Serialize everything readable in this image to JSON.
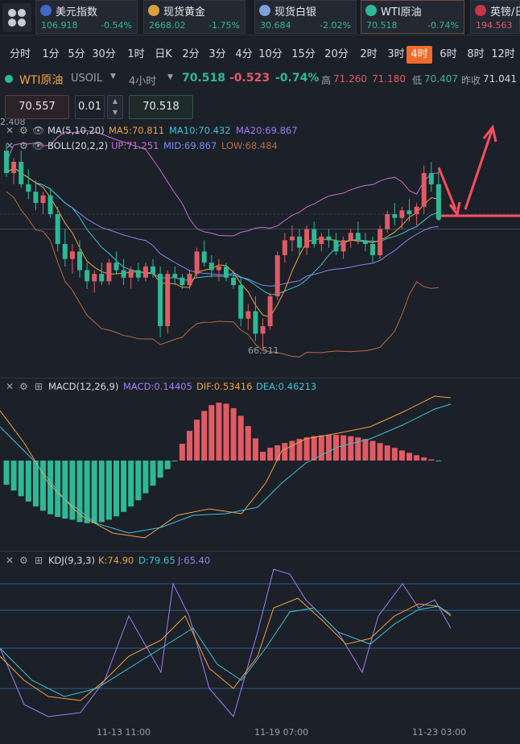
{
  "tickers": [
    {
      "name": "美元指数",
      "price": "106.918",
      "change": "-0.54%",
      "flag_color": "#3f69c7",
      "neg": false
    },
    {
      "name": "现货黄金",
      "price": "2668.02",
      "change": "-1.75%",
      "flag_color": "#d6a23b",
      "neg": false
    },
    {
      "name": "现货白银",
      "price": "30.684",
      "change": "-2.02%",
      "flag_color": "#7da0d8",
      "neg": false
    },
    {
      "name": "WTI原油",
      "price": "70.518",
      "change": "-0.74%",
      "flag_color": "#2eb896",
      "neg": false
    },
    {
      "name": "英镑/日",
      "price": "194.563",
      "change": "",
      "flag_color": "#c8344a",
      "neg": true
    }
  ],
  "timeframes": [
    "分时",
    "1分",
    "5分",
    "30分",
    "1时",
    "日K",
    "2分",
    "3分",
    "4分",
    "10分",
    "15分",
    "20分",
    "2时",
    "3时",
    "4时",
    "6时",
    "8时",
    "12时"
  ],
  "active_timeframe": "4时",
  "symbol": {
    "name": "WTI原油",
    "code": "USOIL",
    "period": "4小时",
    "last": "70.518",
    "change": "-0.523",
    "change_pct": "-0.74%",
    "high_label": "高",
    "high": "71.260",
    "current_price": "71.180",
    "low_label": "低",
    "low": "70.407",
    "prev_close_label": "昨收",
    "prev_close": "71.041"
  },
  "order": {
    "sell_price": "70.557",
    "quantity": "0.01",
    "buy_price": "70.518"
  },
  "indicators": {
    "ma": {
      "label": "MA(5,10,20)",
      "ma5": "MA5:70.811",
      "ma10": "MA10:70.432",
      "ma20": "MA20:69.867"
    },
    "boll": {
      "label": "BOLL(20,2,2)",
      "up": "UP:71.251",
      "mid": "MID:69.867",
      "low": "LOW:68.484"
    },
    "macd": {
      "label": "MACD(12,26,9)",
      "macd": "MACD:0.14405",
      "dif": "DIF:0.53416",
      "dea": "DEA:0.46213"
    },
    "kdj": {
      "label": "KDJ(9,3,3)",
      "k": "K:74.90",
      "d": "D:79.65",
      "j": "J:65.40"
    }
  },
  "chart_labels": {
    "edge_price": "2.408",
    "lowest_price": "66.511"
  },
  "x_axis": [
    "11-13 11:00",
    "11-19 07:00",
    "11-23 03:00"
  ],
  "colors": {
    "up": "#e15b64",
    "down": "#2eb896",
    "ma5": "#f0a23b",
    "ma10": "#3fc2d6",
    "ma20": "#a17ef0",
    "boll_up": "#c86fd1",
    "boll_mid": "#7b8cf0",
    "boll_low": "#b56a3f",
    "accent": "#f26b2a"
  },
  "chart_data": {
    "type": "candlestick",
    "title": "WTI原油 USOIL 4小时",
    "x_labels": [
      "11-13 11:00",
      "11-19 07:00",
      "11-23 03:00"
    ],
    "candles_ohlc": [
      [
        72.3,
        72.5,
        71.6,
        71.7
      ],
      [
        71.7,
        72.1,
        71.4,
        72.0
      ],
      [
        72.0,
        72.3,
        71.3,
        71.4
      ],
      [
        71.4,
        71.8,
        71.0,
        71.2
      ],
      [
        71.2,
        71.5,
        70.7,
        70.9
      ],
      [
        70.9,
        71.2,
        70.6,
        71.1
      ],
      [
        71.1,
        71.3,
        70.5,
        70.6
      ],
      [
        70.6,
        70.8,
        69.6,
        69.8
      ],
      [
        69.8,
        70.2,
        69.2,
        69.4
      ],
      [
        69.4,
        69.8,
        69.0,
        69.6
      ],
      [
        69.6,
        69.9,
        68.9,
        69.1
      ],
      [
        69.1,
        69.3,
        68.6,
        68.8
      ],
      [
        68.8,
        69.1,
        68.5,
        69.0
      ],
      [
        69.0,
        69.3,
        68.7,
        68.8
      ],
      [
        68.8,
        69.4,
        68.7,
        69.3
      ],
      [
        69.3,
        69.6,
        69.0,
        69.1
      ],
      [
        69.1,
        69.4,
        68.7,
        68.9
      ],
      [
        68.9,
        69.2,
        68.6,
        69.1
      ],
      [
        69.1,
        69.3,
        68.8,
        68.9
      ],
      [
        68.9,
        69.3,
        68.8,
        69.2
      ],
      [
        69.2,
        69.4,
        68.9,
        69.0
      ],
      [
        69.0,
        69.2,
        67.3,
        67.6
      ],
      [
        67.6,
        69.1,
        67.4,
        69.0
      ],
      [
        69.0,
        69.2,
        68.7,
        68.9
      ],
      [
        68.9,
        69.0,
        68.6,
        68.7
      ],
      [
        68.7,
        69.1,
        68.6,
        69.0
      ],
      [
        69.0,
        69.7,
        68.9,
        69.6
      ],
      [
        69.6,
        69.9,
        69.2,
        69.3
      ],
      [
        69.3,
        69.5,
        68.9,
        69.1
      ],
      [
        69.1,
        69.4,
        68.8,
        69.2
      ],
      [
        69.2,
        69.3,
        68.8,
        68.9
      ],
      [
        68.9,
        69.1,
        68.6,
        68.7
      ],
      [
        68.7,
        68.9,
        67.6,
        67.8
      ],
      [
        67.8,
        68.2,
        67.5,
        68.0
      ],
      [
        68.0,
        68.4,
        67.2,
        67.4
      ],
      [
        67.4,
        67.8,
        67.0,
        67.6
      ],
      [
        67.6,
        68.5,
        67.5,
        68.4
      ],
      [
        68.4,
        69.6,
        68.3,
        69.5
      ],
      [
        69.5,
        70.1,
        69.3,
        69.9
      ],
      [
        69.9,
        70.3,
        69.6,
        70.0
      ],
      [
        70.0,
        70.2,
        69.5,
        69.7
      ],
      [
        69.7,
        70.3,
        69.5,
        70.2
      ],
      [
        70.2,
        70.4,
        69.7,
        69.8
      ],
      [
        69.8,
        70.1,
        69.6,
        70.0
      ],
      [
        70.0,
        70.2,
        69.7,
        69.9
      ],
      [
        69.9,
        70.1,
        69.5,
        69.6
      ],
      [
        69.6,
        70.0,
        69.4,
        69.9
      ],
      [
        69.9,
        70.2,
        69.7,
        70.1
      ],
      [
        70.1,
        70.4,
        69.8,
        69.9
      ],
      [
        69.9,
        70.1,
        69.6,
        69.8
      ],
      [
        69.8,
        70.0,
        69.3,
        69.5
      ],
      [
        69.5,
        70.3,
        69.4,
        70.2
      ],
      [
        70.2,
        70.7,
        70.1,
        70.6
      ],
      [
        70.6,
        70.9,
        70.3,
        70.5
      ],
      [
        70.5,
        70.8,
        70.2,
        70.7
      ],
      [
        70.7,
        71.0,
        70.4,
        70.6
      ],
      [
        70.6,
        70.9,
        70.3,
        70.8
      ],
      [
        70.8,
        71.9,
        70.6,
        71.7
      ],
      [
        71.7,
        72.0,
        71.2,
        71.4
      ],
      [
        71.4,
        71.8,
        70.5,
        70.5
      ]
    ],
    "indicators": [
      "MA(5,10,20)",
      "BOLL(20,2,2)",
      "MACD(12,26,9)",
      "KDJ(9,3,3)"
    ]
  }
}
